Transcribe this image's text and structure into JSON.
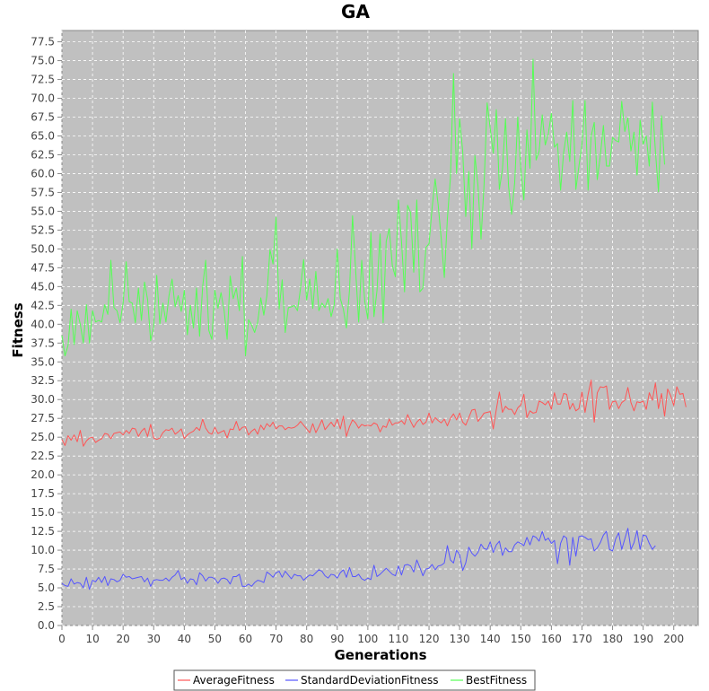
{
  "chart_data": {
    "type": "line",
    "title": "GA",
    "xlabel": "Generations",
    "ylabel": "Fitness",
    "xlim": [
      0,
      208
    ],
    "ylim": [
      0,
      79
    ],
    "x_ticks": [
      0,
      10,
      20,
      30,
      40,
      50,
      60,
      70,
      80,
      90,
      100,
      110,
      120,
      130,
      140,
      150,
      160,
      170,
      180,
      190,
      200
    ],
    "y_ticks": [
      0,
      2.5,
      5,
      7.5,
      10,
      12.5,
      15,
      17.5,
      20,
      22.5,
      25,
      27.5,
      30,
      32.5,
      35,
      37.5,
      40,
      42.5,
      45,
      47.5,
      50,
      52.5,
      55,
      57.5,
      60,
      62.5,
      65,
      67.5,
      70,
      72.5,
      75,
      77.5
    ],
    "grid": true,
    "legend_position": "bottom",
    "plot_background": "#c0c0c0",
    "series": [
      {
        "name": "AverageFitness",
        "color": "#ff5555",
        "values": [
          24.7,
          23.9,
          25.2,
          24.6,
          25.3,
          24.4,
          25.9,
          23.8,
          24.5,
          24.9,
          25.0,
          24.3,
          24.6,
          24.8,
          25.5,
          25.4,
          24.8,
          25.5,
          25.6,
          25.7,
          25.3,
          25.9,
          25.5,
          26.2,
          26.1,
          25.1,
          25.8,
          26.2,
          25.1,
          26.7,
          24.9,
          24.7,
          24.9,
          25.6,
          26.0,
          25.9,
          26.2,
          25.4,
          25.7,
          26.1,
          24.8,
          25.3,
          25.6,
          25.8,
          26.3,
          25.9,
          27.4,
          26.2,
          25.6,
          25.4,
          26.3,
          25.5,
          25.7,
          25.9,
          24.9,
          26.1,
          26.0,
          27.1,
          25.9,
          26.3,
          26.4,
          25.3,
          25.8,
          26.1,
          25.4,
          26.6,
          26.0,
          26.8,
          26.4,
          27.0,
          26.1,
          26.5,
          26.5,
          26.0,
          26.3,
          26.2,
          26.3,
          26.6,
          27.1,
          26.6,
          26.1,
          25.6,
          26.8,
          25.6,
          26.4,
          27.3,
          26.0,
          26.5,
          27.0,
          26.4,
          27.4,
          26.1,
          27.8,
          25.1,
          26.4,
          27.3,
          26.9,
          26.2,
          26.7,
          26.5,
          26.6,
          26.5,
          26.9,
          26.7,
          25.7,
          26.5,
          26.3,
          27.4,
          26.6,
          26.9,
          26.9,
          27.2,
          26.7,
          28.0,
          27.1,
          26.3,
          27.0,
          27.4,
          26.7,
          27.0,
          28.2,
          26.9,
          27.6,
          27.2,
          26.9,
          27.4,
          26.5,
          27.5,
          28.1,
          27.3,
          28.2,
          27.0,
          26.6,
          27.6,
          28.6,
          28.7,
          27.1,
          27.6,
          28.2,
          28.3,
          28.4,
          26.1,
          28.7,
          31.0,
          28.3,
          29.1,
          28.7,
          28.7,
          28.0,
          28.9,
          29.3,
          30.7,
          27.6,
          28.5,
          28.2,
          28.3,
          29.8,
          29.6,
          29.3,
          29.8,
          28.7,
          30.9,
          29.4,
          29.4,
          30.8,
          30.7,
          28.7,
          29.5,
          28.5,
          28.8,
          31.0,
          28.3,
          30.7,
          32.6,
          27.0,
          30.9,
          31.7,
          31.6,
          31.8,
          28.7,
          29.7,
          29.8,
          28.8,
          29.6,
          29.9,
          31.6,
          29.6,
          28.5,
          29.7,
          29.6,
          29.8,
          28.7,
          30.9,
          29.9,
          32.2,
          28.8,
          30.8,
          27.8,
          31.4,
          30.5,
          29.2,
          31.7,
          30.7,
          30.8,
          29.0
        ]
      },
      {
        "name": "StandardDeviationFitness",
        "color": "#5555ff",
        "values": [
          5.6,
          5.3,
          5.2,
          6.2,
          5.5,
          5.7,
          5.6,
          5.0,
          6.4,
          4.8,
          6.0,
          5.8,
          6.4,
          5.7,
          6.5,
          5.3,
          6.2,
          6.1,
          5.8,
          6.0,
          6.8,
          6.4,
          6.5,
          6.2,
          6.3,
          6.4,
          6.5,
          5.8,
          6.3,
          5.2,
          6.0,
          6.1,
          6.0,
          6.0,
          6.3,
          5.9,
          6.4,
          6.7,
          7.3,
          6.1,
          6.4,
          5.6,
          6.2,
          6.1,
          5.4,
          7.0,
          6.6,
          5.9,
          6.4,
          6.4,
          6.2,
          5.6,
          6.2,
          6.3,
          6.1,
          5.5,
          6.5,
          6.5,
          6.8,
          5.2,
          5.2,
          5.5,
          5.2,
          5.7,
          6.0,
          5.9,
          5.7,
          7.1,
          6.8,
          6.4,
          7.0,
          7.2,
          6.4,
          7.2,
          6.7,
          6.2,
          6.8,
          6.6,
          6.6,
          6.0,
          6.4,
          6.7,
          6.6,
          7.0,
          7.4,
          7.2,
          6.6,
          6.3,
          6.8,
          6.7,
          6.3,
          7.0,
          7.4,
          6.4,
          7.7,
          6.5,
          6.5,
          6.8,
          6.2,
          6.0,
          6.3,
          6.1,
          8.0,
          6.5,
          6.8,
          7.2,
          7.6,
          7.2,
          6.8,
          6.6,
          7.9,
          6.7,
          8.0,
          8.1,
          7.9,
          7.1,
          8.7,
          7.7,
          6.6,
          7.5,
          7.6,
          8.1,
          7.4,
          7.9,
          8.0,
          8.3,
          10.6,
          8.7,
          8.3,
          10.0,
          9.4,
          7.3,
          8.3,
          10.4,
          9.6,
          9.2,
          9.7,
          10.8,
          10.2,
          10.1,
          11.1,
          9.7,
          10.7,
          11.2,
          9.3,
          10.3,
          9.8,
          9.8,
          10.7,
          11.1,
          10.9,
          10.6,
          11.7,
          10.7,
          11.9,
          11.7,
          11.2,
          12.5,
          11.3,
          11.6,
          10.9,
          11.3,
          8.2,
          10.9,
          11.9,
          11.6,
          8.0,
          11.7,
          9.2,
          11.8,
          11.9,
          11.7,
          11.4,
          11.5,
          9.9,
          10.3,
          11.0,
          12.0,
          12.5,
          10.1,
          9.9,
          11.5,
          12.3,
          10.1,
          11.5,
          12.9,
          10.1,
          11.0,
          12.6,
          10.1,
          12.0,
          11.9,
          10.9,
          10.1,
          10.6
        ]
      },
      {
        "name": "BestFitness",
        "color": "#55ff55",
        "values": [
          38.5,
          35.8,
          37.2,
          42.0,
          37.3,
          41.8,
          40.0,
          37.5,
          42.6,
          37.5,
          41.8,
          40.3,
          40.5,
          40.3,
          42.6,
          41.3,
          48.5,
          42.2,
          41.8,
          40.2,
          42.8,
          48.3,
          43.0,
          42.8,
          40.2,
          44.8,
          40.5,
          45.6,
          43.3,
          37.8,
          39.7,
          46.5,
          40.0,
          42.8,
          40.3,
          43.8,
          46.0,
          42.3,
          43.8,
          41.7,
          44.5,
          38.6,
          42.5,
          39.5,
          44.8,
          38.4,
          45.0,
          48.5,
          39.2,
          38.0,
          44.5,
          42.1,
          44.2,
          41.9,
          38.0,
          46.4,
          43.4,
          44.8,
          41.8,
          49.0,
          35.8,
          40.6,
          39.9,
          38.9,
          40.3,
          43.5,
          41.2,
          43.8,
          49.9,
          48.0,
          54.2,
          42.0,
          45.9,
          38.9,
          42.2,
          42.3,
          42.5,
          41.8,
          44.8,
          48.6,
          43.2,
          46.0,
          42.1,
          47.0,
          41.8,
          42.8,
          42.2,
          43.4,
          41.0,
          42.6,
          50.0,
          43.4,
          42.0,
          39.5,
          44.5,
          54.4,
          47.3,
          40.3,
          48.5,
          43.0,
          40.7,
          52.2,
          41.0,
          44.5,
          52.0,
          40.2,
          51.0,
          52.7,
          47.8,
          46.3,
          56.5,
          51.0,
          44.3,
          55.8,
          54.8,
          46.9,
          56.5,
          44.3,
          44.8,
          50.2,
          50.7,
          55.4,
          59.3,
          55.8,
          51.3,
          46.2,
          54.0,
          59.5,
          73.3,
          60.0,
          67.3,
          63.0,
          54.3,
          60.3,
          50.0,
          62.4,
          58.4,
          51.3,
          58.6,
          69.4,
          66.0,
          62.7,
          68.5,
          57.9,
          60.6,
          67.3,
          58.3,
          54.6,
          58.8,
          67.5,
          60.6,
          56.5,
          65.8,
          60.7,
          75.2,
          61.8,
          63.0,
          67.8,
          63.8,
          65.3,
          68.0,
          63.5,
          64.0,
          57.8,
          62.8,
          65.5,
          61.6,
          69.7,
          57.9,
          61.0,
          63.9,
          69.7,
          57.8,
          65.0,
          66.8,
          59.2,
          62.4,
          66.4,
          61.0,
          61.0,
          64.8,
          64.4,
          64.2,
          69.6,
          65.6,
          67.4,
          63.0,
          65.5,
          59.8,
          67.1,
          63.9,
          65.0,
          61.0,
          69.5,
          63.0,
          57.6,
          67.7,
          61.2
        ]
      }
    ]
  }
}
